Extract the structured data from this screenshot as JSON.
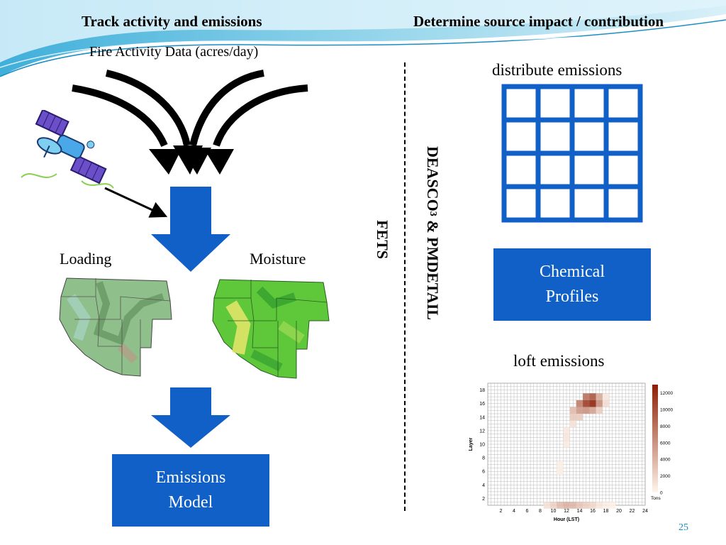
{
  "colors": {
    "accent_blue": "#1060c8",
    "arrow_black": "#000000",
    "divider": "#000000"
  },
  "header": {
    "left_title": "Track activity and emissions",
    "right_title": "Determine source impact / contribution"
  },
  "left": {
    "fire_activity_label": "Fire Activity Data (acres/day)",
    "loading_label": "Loading",
    "moisture_label": "Moisture",
    "emissions_model": [
      "Emissions",
      "Model"
    ],
    "satellite_icon": "satellite-icon",
    "loading_map_icon": "western-us-loading-map",
    "moisture_map_icon": "western-us-moisture-map"
  },
  "middle": {
    "fets_label": "FETS",
    "deasco_prefix": "DEASCO",
    "deasco_sub": "3",
    "deasco_suffix": " &  PMDETAIL"
  },
  "right": {
    "distribute_label": "distribute emissions",
    "chemical_profiles": [
      "Chemical",
      "Profiles"
    ],
    "loft_label": "loft emissions"
  },
  "chart_data": {
    "type": "heatmap",
    "xlabel": "Hour (LST)",
    "ylabel": "Layer",
    "x_ticks": [
      "2",
      "4",
      "6",
      "8",
      "10",
      "12",
      "14",
      "16",
      "18",
      "20",
      "22",
      "24"
    ],
    "y_ticks": [
      "2",
      "4",
      "6",
      "8",
      "10",
      "12",
      "14",
      "16",
      "18"
    ],
    "xlim": [
      0,
      24
    ],
    "ylim": [
      1,
      19
    ],
    "colorbar_ticks": [
      "12000",
      "10000",
      "8000",
      "6000",
      "4000",
      "2000",
      "0"
    ],
    "colorbar_label": "Tons",
    "colorbar_range": [
      0,
      13000
    ],
    "cells": [
      {
        "x": 9,
        "y": 1,
        "v": 1200
      },
      {
        "x": 10,
        "y": 1,
        "v": 2200
      },
      {
        "x": 11,
        "y": 1,
        "v": 3500
      },
      {
        "x": 12,
        "y": 1,
        "v": 4200
      },
      {
        "x": 13,
        "y": 1,
        "v": 3800
      },
      {
        "x": 14,
        "y": 1,
        "v": 3000
      },
      {
        "x": 15,
        "y": 1,
        "v": 2400
      },
      {
        "x": 16,
        "y": 1,
        "v": 1800
      },
      {
        "x": 17,
        "y": 1,
        "v": 900
      },
      {
        "x": 18,
        "y": 1,
        "v": 400
      },
      {
        "x": 19,
        "y": 1,
        "v": 200
      },
      {
        "x": 11,
        "y": 6,
        "v": 400
      },
      {
        "x": 11,
        "y": 7,
        "v": 300
      },
      {
        "x": 12,
        "y": 10,
        "v": 600
      },
      {
        "x": 12,
        "y": 11,
        "v": 900
      },
      {
        "x": 12,
        "y": 12,
        "v": 700
      },
      {
        "x": 13,
        "y": 13,
        "v": 1200
      },
      {
        "x": 13,
        "y": 14,
        "v": 2600
      },
      {
        "x": 13,
        "y": 15,
        "v": 3500
      },
      {
        "x": 14,
        "y": 14,
        "v": 2500
      },
      {
        "x": 14,
        "y": 15,
        "v": 5600
      },
      {
        "x": 14,
        "y": 16,
        "v": 7200
      },
      {
        "x": 15,
        "y": 15,
        "v": 6000
      },
      {
        "x": 15,
        "y": 16,
        "v": 11000
      },
      {
        "x": 15,
        "y": 17,
        "v": 8000
      },
      {
        "x": 16,
        "y": 15,
        "v": 5000
      },
      {
        "x": 16,
        "y": 16,
        "v": 12500
      },
      {
        "x": 16,
        "y": 17,
        "v": 9500
      },
      {
        "x": 17,
        "y": 15,
        "v": 2500
      },
      {
        "x": 17,
        "y": 16,
        "v": 6200
      },
      {
        "x": 17,
        "y": 17,
        "v": 4500
      },
      {
        "x": 18,
        "y": 16,
        "v": 1500
      },
      {
        "x": 18,
        "y": 17,
        "v": 900
      }
    ]
  },
  "footer": {
    "page_number": "25"
  }
}
